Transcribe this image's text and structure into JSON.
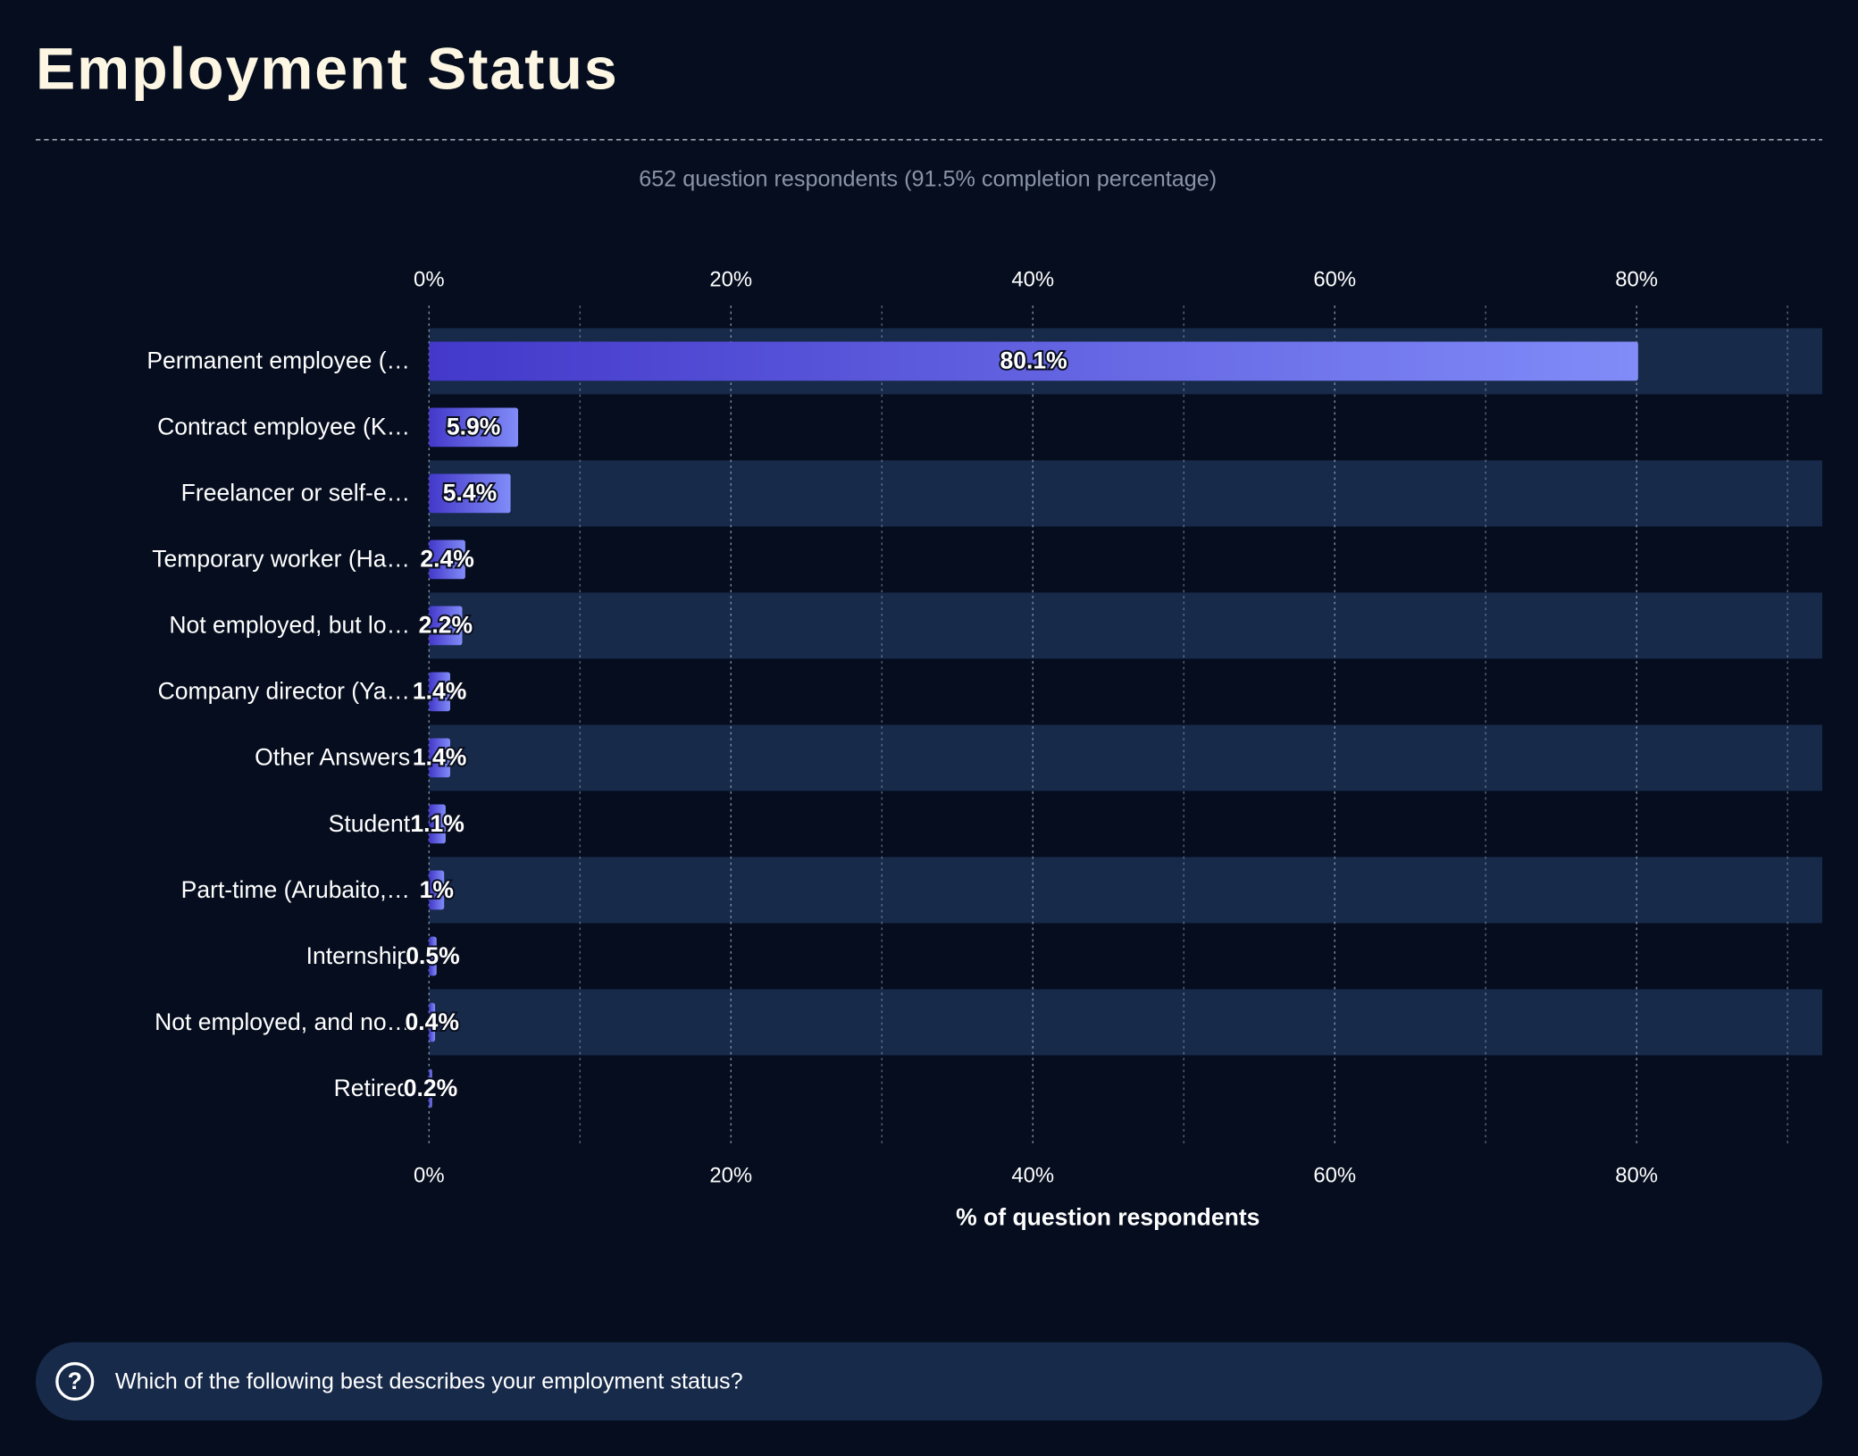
{
  "chart_data": {
    "type": "bar",
    "orientation": "horizontal",
    "title": "Employment Status",
    "subtitle": "652 question respondents (91.5% completion percentage)",
    "x_label": "% of question respondents",
    "question": "Which of the following best describes your employment status?",
    "categories": [
      "Permanent employee (…",
      "Contract employee (K…",
      "Freelancer or self-e…",
      "Temporary worker (Ha…",
      "Not employed, but lo…",
      "Company director (Ya…",
      "Other Answers",
      "Student",
      "Part-time (Arubaito,…",
      "Internship",
      "Not employed, and no…",
      "Retired"
    ],
    "values": [
      80.1,
      5.9,
      5.4,
      2.4,
      2.2,
      1.4,
      1.4,
      1.1,
      1,
      0.5,
      0.4,
      0.2
    ],
    "value_labels": [
      "80.1%",
      "5.9%",
      "5.4%",
      "2.4%",
      "2.2%",
      "1.4%",
      "1.4%",
      "1.1%",
      "1%",
      "0.5%",
      "0.4%",
      "0.2%"
    ],
    "color": [
      "#4338ca",
      "#818cf8"
    ],
    "xlim": [
      0,
      92.3
    ],
    "xticks": [
      {
        "value": 0,
        "label": "0%"
      },
      {
        "value": 20,
        "label": "20%"
      },
      {
        "value": 40,
        "label": "40%"
      },
      {
        "value": 60,
        "label": "60%"
      },
      {
        "value": 80,
        "label": "80%"
      }
    ],
    "x_minor_ticks": [
      10,
      30,
      50,
      70,
      90
    ],
    "grid": true
  }
}
